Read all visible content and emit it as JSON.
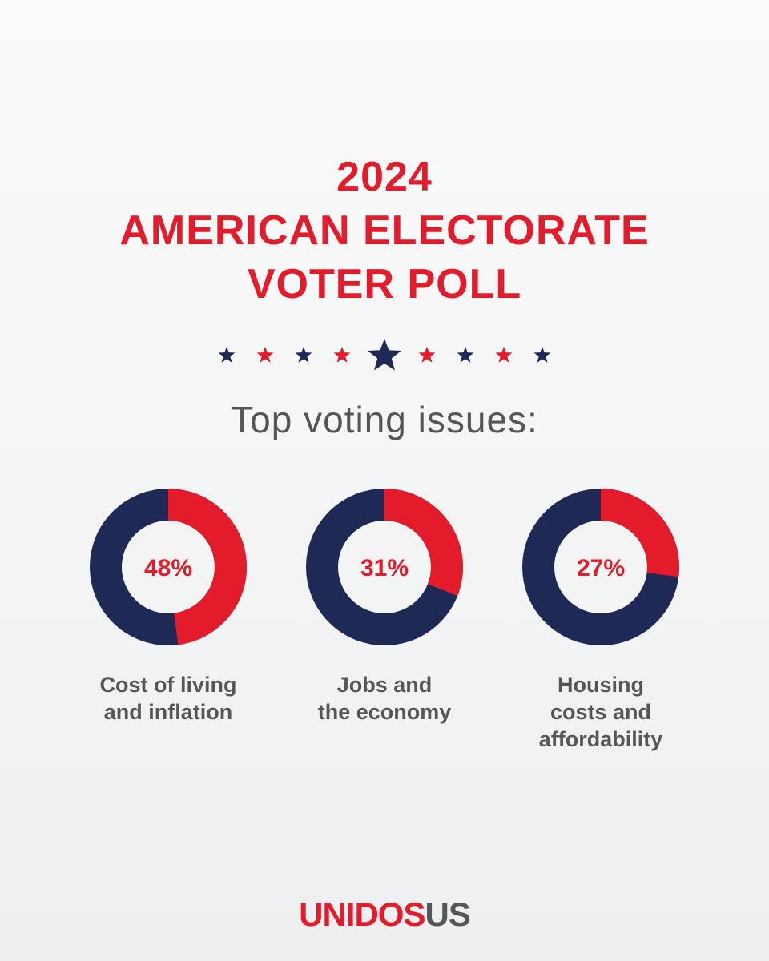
{
  "title": {
    "line1": "2024",
    "line2": "AMERICAN ELECTORATE",
    "line3": "VOTER POLL"
  },
  "subtitle": "Top voting issues:",
  "colors": {
    "red": "#e31b2b",
    "navy": "#1e2a55",
    "grey_text": "#555658"
  },
  "star_sequence": [
    "navy",
    "red",
    "navy",
    "red",
    "navy-large",
    "red",
    "navy",
    "red",
    "navy"
  ],
  "chart_data": [
    {
      "type": "pie",
      "value_label": "48%",
      "values": [
        48,
        52
      ],
      "label_lines": [
        "Cost of living",
        "and inflation"
      ]
    },
    {
      "type": "pie",
      "value_label": "31%",
      "values": [
        31,
        69
      ],
      "label_lines": [
        "Jobs and",
        "the economy"
      ]
    },
    {
      "type": "pie",
      "value_label": "27%",
      "values": [
        27,
        73
      ],
      "label_lines": [
        "Housing",
        "costs and",
        "affordability"
      ]
    }
  ],
  "logo": {
    "red_part": "UNIDOS",
    "grey_part": "US"
  }
}
